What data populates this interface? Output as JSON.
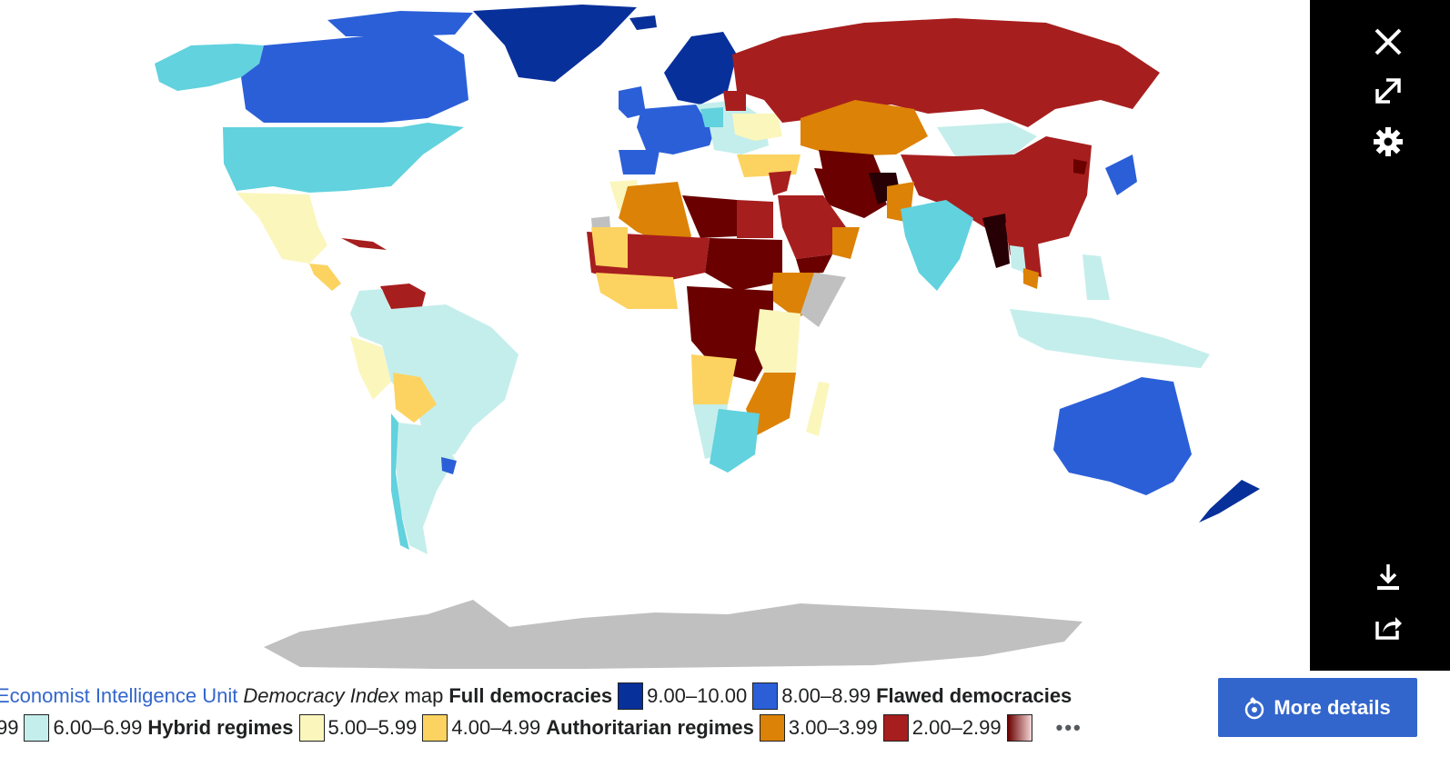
{
  "map": {
    "colors": {
      "ocean": "#ffffff",
      "no_data": "#c0c0c0",
      "full_9_10": "#08309a",
      "full_8_9": "#2b5fd8",
      "flawed_7_8": "#61d2de",
      "flawed_6_7": "#c4eeeb",
      "hybrid_5_6": "#fbf6bc",
      "hybrid_4_5": "#fcd360",
      "auth_3_4": "#dc8206",
      "auth_2_3": "#a71e1e",
      "auth_1_2": "#6a0000",
      "auth_0_1": "#260004"
    }
  },
  "toolbar": {
    "close_icon": "close-icon",
    "fullscreen_icon": "fullscreen-icon",
    "settings_icon": "gear-icon",
    "download_icon": "download-icon",
    "share_icon": "share-icon"
  },
  "caption": {
    "line1": {
      "link_text": "Economist Intelligence Unit",
      "italic_text": "Democracy Index",
      "map_word": "map",
      "full_label": "Full democracies",
      "range_9": "9.00–10.00",
      "range_8": "8.00–8.99",
      "flawed_label": "Flawed democracies"
    },
    "line2": {
      "range_7_partial": "99",
      "range_6": "6.00–6.99",
      "hybrid_label": "Hybrid regimes",
      "range_5": "5.00–5.99",
      "range_4": "4.00–4.99",
      "auth_label": "Authoritarian regimes",
      "range_3": "3.00–3.99",
      "range_2": "2.00–2.99",
      "ellipsis": "•••"
    }
  },
  "more_details": {
    "label": "More details",
    "icon": "info-telescope-icon"
  }
}
